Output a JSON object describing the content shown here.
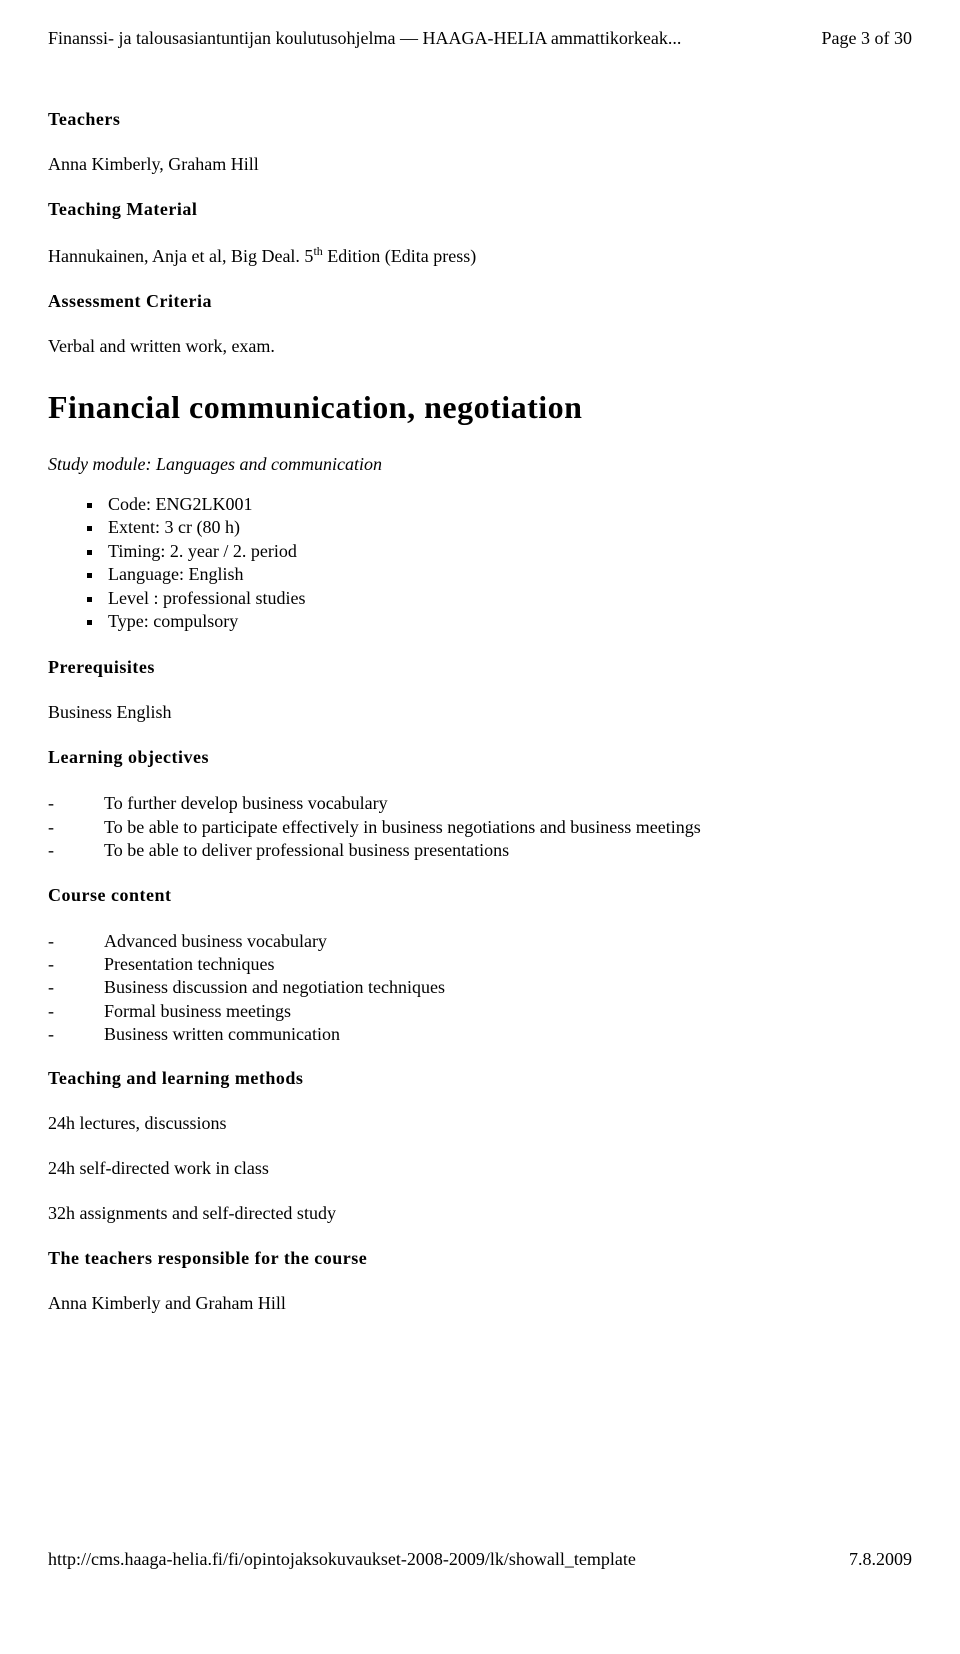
{
  "header": {
    "left": "Finanssi- ja talousasiantuntijan koulutusohjelma — HAAGA-HELIA ammattikorkeak...",
    "right": "Page 3 of 30"
  },
  "teachers": {
    "heading": "Teachers",
    "body": "Anna Kimberly, Graham Hill"
  },
  "teaching_material": {
    "heading": "Teaching Material",
    "body_pre": "Hannukainen, Anja et al, Big Deal. 5",
    "body_sup": "th",
    "body_post": " Edition (Edita press)"
  },
  "assessment": {
    "heading": "Assessment Criteria",
    "body": "Verbal and written work, exam."
  },
  "course_title": "Financial communication, negotiation",
  "study_module": "Study module: Languages and communication",
  "details": [
    "Code: ENG2LK001",
    "Extent: 3 cr (80 h)",
    "Timing: 2. year / 2. period",
    "Language: English",
    "Level : professional studies",
    "Type: compulsory"
  ],
  "prerequisites": {
    "heading": "Prerequisites",
    "body": "Business English"
  },
  "learning_obj": {
    "heading": "Learning objectives",
    "items": [
      "To further develop business vocabulary",
      "To be able to participate effectively in business negotiations and business meetings",
      "To be able to deliver professional business presentations"
    ]
  },
  "course_content": {
    "heading": "Course content",
    "items": [
      "Advanced business vocabulary",
      "Presentation techniques",
      "Business discussion and negotiation techniques",
      "Formal business meetings",
      "Business written communication"
    ]
  },
  "methods": {
    "heading": "Teaching and learning methods",
    "line1": "24h lectures, discussions",
    "line2": "24h self-directed work in class",
    "line3": "32h assignments and self-directed study"
  },
  "responsible": {
    "heading": "The teachers responsible for the course",
    "body": "Anna Kimberly and Graham Hill"
  },
  "footer": {
    "url": "http://cms.haaga-helia.fi/fi/opintojaksokuvaukset-2008-2009/lk/showall_template",
    "date": "7.8.2009"
  }
}
